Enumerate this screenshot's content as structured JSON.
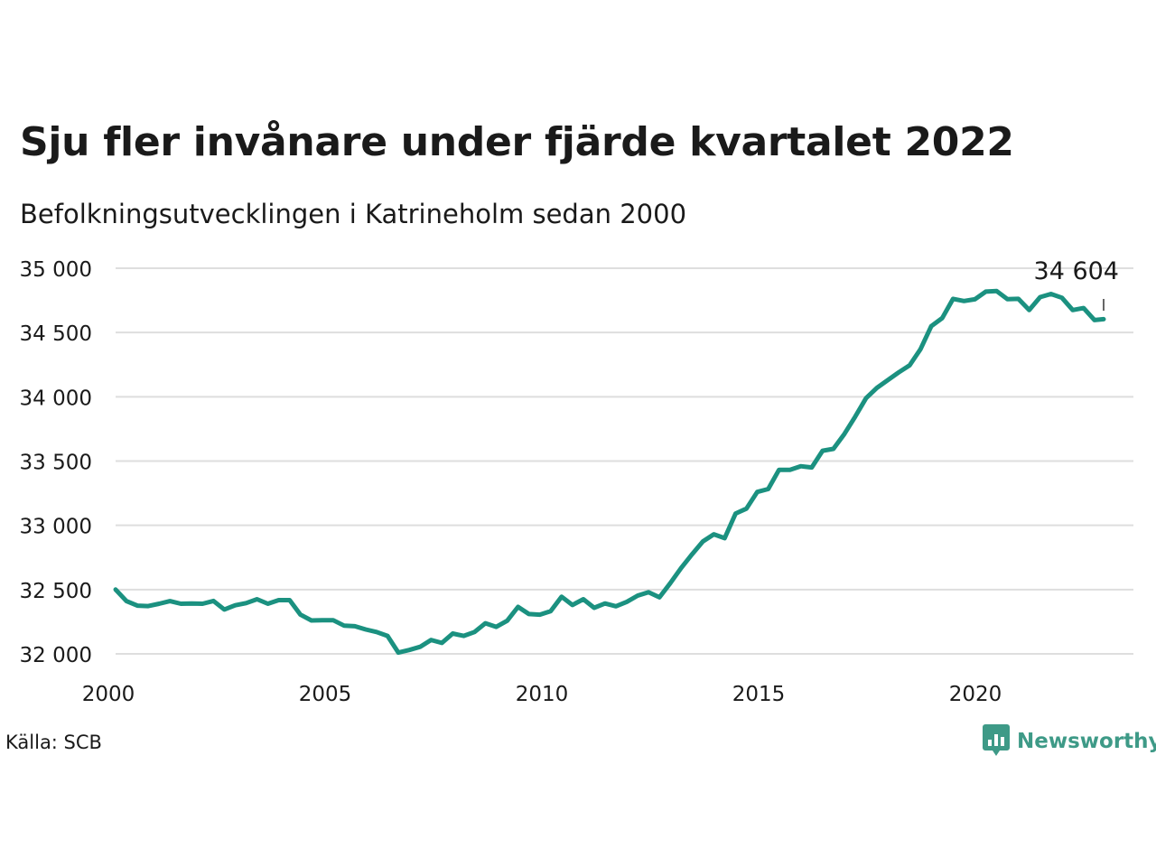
{
  "title": "Sju fler invånare under fjärde kvartalet 2022",
  "subtitle": "Befolkningsutvecklingen i Katrineholm sedan 2000",
  "source": "Källa: SCB",
  "brand": {
    "name": "Newsworthy",
    "icon": "newsworthy-logo-icon",
    "color": "#3e9a87"
  },
  "chart_data": {
    "type": "line",
    "title": "Sju fler invånare under fjärde kvartalet 2022",
    "subtitle": "Befolkningsutvecklingen i Katrineholm sedan 2000",
    "xlabel": "",
    "ylabel": "",
    "xlim": [
      2000,
      2023.8
    ],
    "ylim": [
      32000,
      35000
    ],
    "x_ticks": [
      2000,
      2005,
      2010,
      2015,
      2020
    ],
    "x_tick_labels": [
      "2000",
      "2005",
      "2010",
      "2015",
      "2020"
    ],
    "y_ticks": [
      32000,
      32500,
      33000,
      33500,
      34000,
      34500,
      35000
    ],
    "y_tick_labels": [
      "32 000",
      "32 500",
      "33 000",
      "33 500",
      "34 000",
      "34 500",
      "35 000"
    ],
    "grid": "horizontal",
    "line_color": "#1b9180",
    "annotation": {
      "x": 2022.96,
      "y": 34604,
      "label": "34 604"
    },
    "series": [
      {
        "x": [
          2000.25,
          2000.5,
          2000.75,
          2001.0,
          2001.25,
          2001.5,
          2001.75,
          2002.0,
          2002.25,
          2002.5,
          2002.75,
          2003.0,
          2003.25,
          2003.5,
          2003.75,
          2004.0,
          2004.25,
          2004.5,
          2004.75,
          2005.0,
          2005.25,
          2005.5,
          2005.75,
          2006.0,
          2006.25,
          2006.5,
          2006.75,
          2007.0,
          2007.25,
          2007.5,
          2007.75,
          2008.0,
          2008.25,
          2008.5,
          2008.75,
          2009.0,
          2009.25,
          2009.5,
          2009.75,
          2010.0,
          2010.25,
          2010.5,
          2010.75,
          2011.0,
          2011.25,
          2011.5,
          2011.75,
          2012.0,
          2012.25,
          2012.5,
          2012.75,
          2013.0,
          2013.25,
          2013.5,
          2013.75,
          2014.0,
          2014.25,
          2014.5,
          2014.75,
          2015.0,
          2015.25,
          2015.5,
          2015.75,
          2016.0,
          2016.25,
          2016.5,
          2016.75,
          2017.0,
          2017.25,
          2017.5,
          2017.75,
          2018.0,
          2018.25,
          2018.5,
          2018.75,
          2019.0,
          2019.25,
          2019.5,
          2019.75,
          2020.0,
          2020.25,
          2020.5,
          2020.75,
          2021.0,
          2021.25,
          2021.5,
          2021.75,
          2022.0,
          2022.25,
          2022.5,
          2022.75,
          2022.96
        ],
        "values": [
          32500,
          32410,
          32375,
          32372,
          32390,
          32410,
          32390,
          32392,
          32390,
          32412,
          32345,
          32378,
          32395,
          32425,
          32390,
          32418,
          32418,
          32305,
          32260,
          32262,
          32262,
          32220,
          32215,
          32190,
          32170,
          32140,
          32010,
          32030,
          32055,
          32108,
          32085,
          32158,
          32140,
          32170,
          32238,
          32210,
          32258,
          32365,
          32310,
          32305,
          32332,
          32445,
          32380,
          32425,
          32358,
          32392,
          32370,
          32405,
          32453,
          32480,
          32440,
          32550,
          32668,
          32775,
          32875,
          32930,
          32900,
          33092,
          33130,
          33260,
          33282,
          33432,
          33432,
          33460,
          33450,
          33580,
          33595,
          33710,
          33845,
          33990,
          34070,
          34130,
          34190,
          34245,
          34370,
          34550,
          34612,
          34762,
          34745,
          34758,
          34818,
          34822,
          34760,
          34762,
          34675,
          34775,
          34800,
          34770,
          34675,
          34690,
          34597,
          34604
        ]
      }
    ]
  }
}
